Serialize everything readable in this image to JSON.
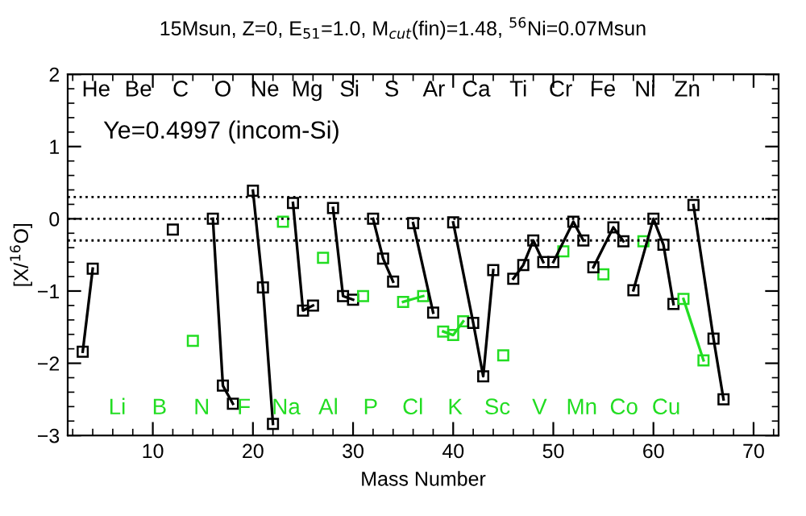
{
  "chart_data": {
    "type": "line",
    "title": "15Msun, Z=0, E$_{51}$=1.0, M$_{cut}$(fin)=1.48, $^{56}$Ni=0.07Msun",
    "xlabel": "Mass Number",
    "ylabel": "[X/$^{16}$O]",
    "annotations": [
      "Ye=0.4997 (incom-Si)",
      "He",
      "Li",
      "Be",
      "B",
      "C",
      "N",
      "O",
      "F",
      "Ne",
      "Na",
      "Mg",
      "Al",
      "Si",
      "P",
      "S",
      "Cl",
      "Ar",
      "K",
      "Ca",
      "Sc",
      "Ti",
      "V",
      "Cr",
      "Mn",
      "Fe",
      "Co",
      "Ni",
      "Cu",
      "Zn"
    ],
    "xlim": [
      1.5,
      72.5
    ],
    "ylim": [
      -3,
      2
    ],
    "xticks": [
      10,
      20,
      30,
      40,
      50,
      60,
      70
    ],
    "yticks": [
      -3,
      -2,
      -1,
      0,
      1,
      2
    ],
    "marker": "square",
    "line_style": "solid",
    "ref_lines": [
      {
        "axis": "y",
        "value": 0.3,
        "line_style": "dotted",
        "color": "#000000"
      },
      {
        "axis": "y",
        "value": 0,
        "line_style": "dotted",
        "color": "#000000"
      },
      {
        "axis": "y",
        "value": -0.3,
        "line_style": "dotted",
        "color": "#000000"
      }
    ],
    "series": [
      {
        "color": "#000000",
        "x": [
          3,
          4
        ],
        "values": [
          -1.84,
          -0.69
        ]
      },
      {
        "color": "#000000",
        "x": [
          12
        ],
        "values": [
          -0.15
        ]
      },
      {
        "color": "#22dd22",
        "x": [
          14
        ],
        "values": [
          -1.69
        ]
      },
      {
        "color": "#000000",
        "x": [
          16,
          17,
          18
        ],
        "values": [
          0.0,
          -2.31,
          -2.56
        ]
      },
      {
        "color": "#000000",
        "x": [
          20,
          21,
          22
        ],
        "values": [
          0.39,
          -0.95,
          -2.84
        ]
      },
      {
        "color": "#22dd22",
        "x": [
          23
        ],
        "values": [
          -0.04
        ]
      },
      {
        "color": "#000000",
        "x": [
          24,
          25,
          26
        ],
        "values": [
          0.22,
          -1.27,
          -1.2
        ]
      },
      {
        "color": "#22dd22",
        "x": [
          27
        ],
        "values": [
          -0.54
        ]
      },
      {
        "color": "#000000",
        "x": [
          28,
          29,
          30
        ],
        "values": [
          0.15,
          -1.07,
          -1.12
        ]
      },
      {
        "color": "#22dd22",
        "x": [
          31
        ],
        "values": [
          -1.07
        ]
      },
      {
        "color": "#000000",
        "x": [
          32,
          33,
          34
        ],
        "values": [
          0.0,
          -0.55,
          -0.87
        ]
      },
      {
        "color": "#22dd22",
        "x": [
          35,
          37
        ],
        "values": [
          -1.15,
          -1.07
        ]
      },
      {
        "color": "#000000",
        "x": [
          36,
          38
        ],
        "values": [
          -0.06,
          -1.3
        ]
      },
      {
        "color": "#22dd22",
        "x": [
          39,
          40,
          41
        ],
        "values": [
          -1.56,
          -1.61,
          -1.42
        ]
      },
      {
        "color": "#000000",
        "x": [
          40,
          42,
          43,
          44
        ],
        "values": [
          -0.05,
          -1.44,
          -2.18,
          -0.71
        ]
      },
      {
        "color": "#22dd22",
        "x": [
          45
        ],
        "values": [
          -1.89
        ]
      },
      {
        "color": "#000000",
        "x": [
          46,
          47,
          48,
          49
        ],
        "values": [
          -0.83,
          -0.64,
          -0.3,
          -0.6
        ]
      },
      {
        "color": "#22dd22",
        "x": [
          51
        ],
        "values": [
          -0.45
        ]
      },
      {
        "color": "#000000",
        "x": [
          50,
          52,
          53
        ],
        "values": [
          -0.6,
          -0.04,
          -0.3
        ]
      },
      {
        "color": "#22dd22",
        "x": [
          55
        ],
        "values": [
          -0.77
        ]
      },
      {
        "color": "#000000",
        "x": [
          54,
          56,
          57
        ],
        "values": [
          -0.67,
          -0.12,
          -0.31
        ]
      },
      {
        "color": "#22dd22",
        "x": [
          59
        ],
        "values": [
          -0.31
        ]
      },
      {
        "color": "#000000",
        "x": [
          58,
          60,
          61,
          62
        ],
        "values": [
          -0.99,
          0.0,
          -0.36,
          -1.18
        ]
      },
      {
        "color": "#22dd22",
        "x": [
          63,
          65
        ],
        "values": [
          -1.11,
          -1.96
        ]
      },
      {
        "color": "#000000",
        "x": [
          64,
          66,
          67
        ],
        "values": [
          0.19,
          -1.66,
          -2.5
        ]
      }
    ]
  }
}
